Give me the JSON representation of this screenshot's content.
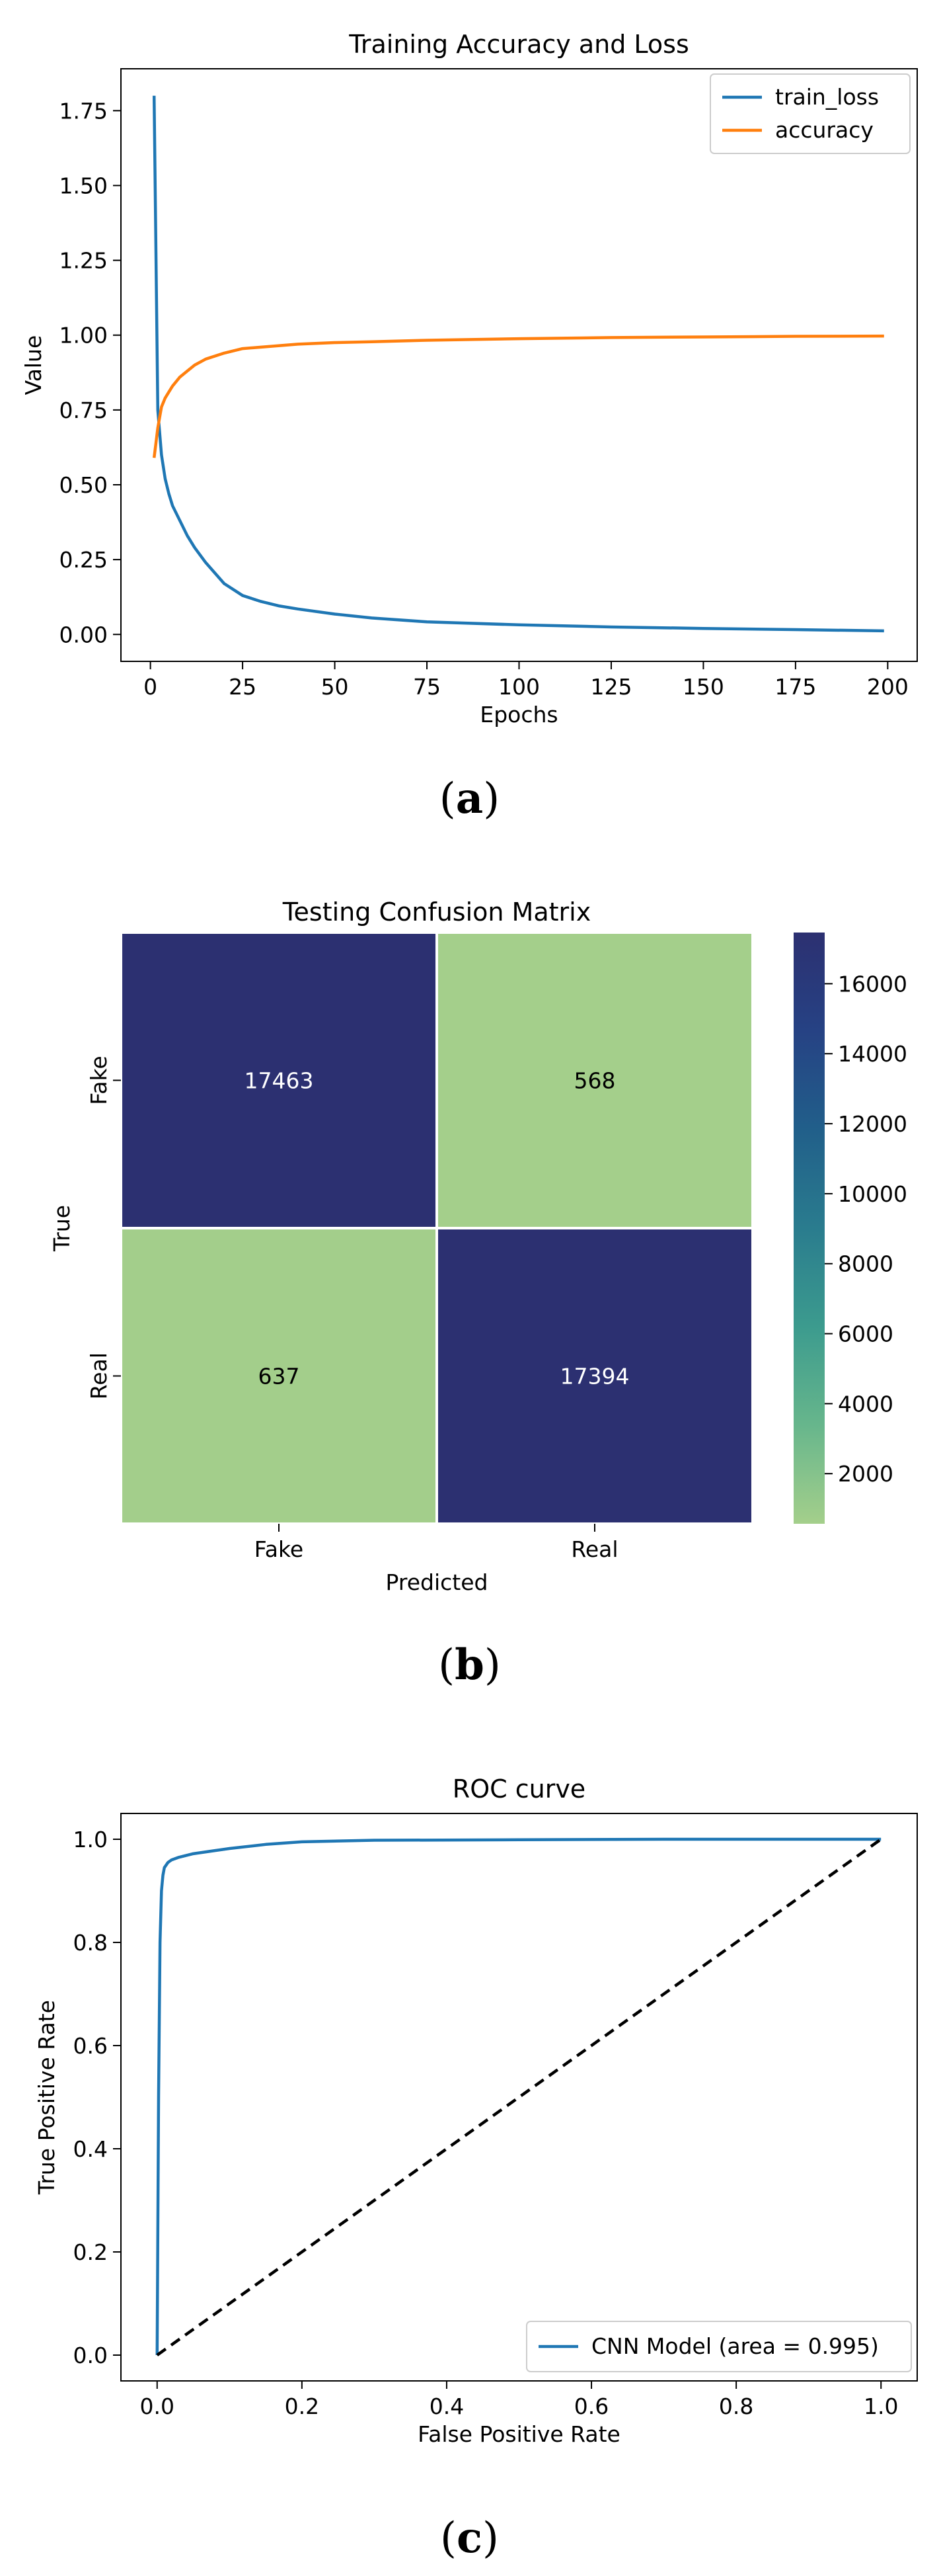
{
  "figure": {
    "captions": [
      "a",
      "b",
      "c"
    ]
  },
  "chart_data": [
    {
      "type": "line",
      "title": "Training Accuracy and Loss",
      "xlabel": "Epochs",
      "ylabel": "Value",
      "xlim": [
        -8,
        208
      ],
      "ylim": [
        -0.09,
        1.89
      ],
      "xticks": [
        0,
        25,
        50,
        75,
        100,
        125,
        150,
        175,
        200
      ],
      "yticks": [
        0.0,
        0.25,
        0.5,
        0.75,
        1.0,
        1.25,
        1.5,
        1.75
      ],
      "ytick_labels": [
        "0.00",
        "0.25",
        "0.50",
        "0.75",
        "1.00",
        "1.25",
        "1.50",
        "1.75"
      ],
      "legend_position": "top-right",
      "series": [
        {
          "name": "train_loss",
          "color": "#1f77b4",
          "x": [
            1,
            2,
            3,
            4,
            5,
            6,
            8,
            10,
            12,
            15,
            20,
            25,
            30,
            35,
            40,
            50,
            60,
            75,
            100,
            125,
            150,
            175,
            199
          ],
          "y": [
            1.8,
            0.75,
            0.6,
            0.52,
            0.47,
            0.43,
            0.38,
            0.33,
            0.29,
            0.24,
            0.17,
            0.13,
            0.11,
            0.095,
            0.085,
            0.068,
            0.055,
            0.042,
            0.032,
            0.025,
            0.02,
            0.016,
            0.012
          ]
        },
        {
          "name": "accuracy",
          "color": "#ff7f0e",
          "x": [
            1,
            2,
            3,
            4,
            5,
            6,
            8,
            10,
            12,
            15,
            20,
            25,
            30,
            35,
            40,
            50,
            60,
            75,
            100,
            125,
            150,
            175,
            199
          ],
          "y": [
            0.59,
            0.69,
            0.76,
            0.79,
            0.81,
            0.83,
            0.86,
            0.88,
            0.9,
            0.92,
            0.94,
            0.955,
            0.96,
            0.965,
            0.97,
            0.975,
            0.978,
            0.983,
            0.988,
            0.992,
            0.994,
            0.996,
            0.997
          ]
        }
      ]
    },
    {
      "type": "heatmap",
      "title": "Testing Confusion Matrix",
      "xlabel": "Predicted",
      "ylabel": "True",
      "x_categories": [
        "Fake",
        "Real"
      ],
      "y_categories": [
        "Fake",
        "Real"
      ],
      "values": [
        [
          17463,
          568
        ],
        [
          637,
          17394
        ]
      ],
      "colorbar": {
        "ticks": [
          2000,
          4000,
          6000,
          8000,
          10000,
          12000,
          14000,
          16000
        ],
        "range": [
          568,
          17463
        ],
        "colormap": "crest",
        "stops": [
          "#a4cf8b",
          "#67b68c",
          "#3c9b8e",
          "#2a7c8e",
          "#215f8a",
          "#264284",
          "#2c3071"
        ]
      }
    },
    {
      "type": "line",
      "title": "ROC curve",
      "xlabel": "False Positive Rate",
      "ylabel": "True Positive Rate",
      "xlim": [
        -0.05,
        1.05
      ],
      "ylim": [
        -0.05,
        1.05
      ],
      "xticks": [
        0.0,
        0.2,
        0.4,
        0.6,
        0.8,
        1.0
      ],
      "yticks": [
        0.0,
        0.2,
        0.4,
        0.6,
        0.8,
        1.0
      ],
      "tick_labels": [
        "0.0",
        "0.2",
        "0.4",
        "0.6",
        "0.8",
        "1.0"
      ],
      "legend_position": "lower-right",
      "series": [
        {
          "name": "CNN Model (area = 0.995)",
          "color": "#1f77b4",
          "x": [
            0.0,
            0.002,
            0.004,
            0.006,
            0.008,
            0.01,
            0.015,
            0.02,
            0.03,
            0.05,
            0.08,
            0.1,
            0.15,
            0.2,
            0.3,
            0.5,
            0.7,
            1.0
          ],
          "y": [
            0.0,
            0.5,
            0.8,
            0.9,
            0.93,
            0.945,
            0.955,
            0.96,
            0.965,
            0.972,
            0.978,
            0.982,
            0.99,
            0.995,
            0.998,
            0.999,
            1.0,
            1.0
          ]
        },
        {
          "name": "",
          "color": "#000000",
          "dashed": true,
          "x": [
            0,
            1
          ],
          "y": [
            0,
            1
          ]
        }
      ]
    }
  ]
}
